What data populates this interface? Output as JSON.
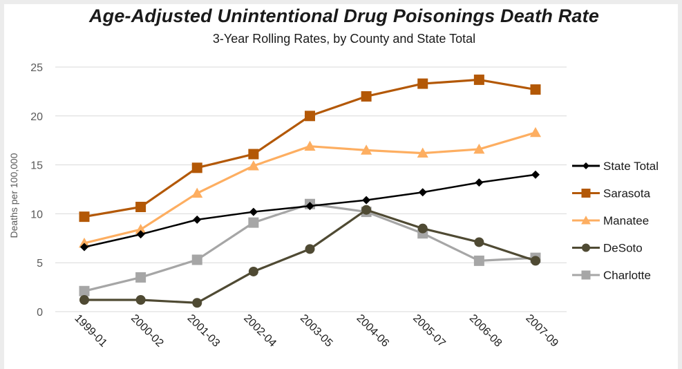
{
  "chart_data": {
    "type": "line",
    "title": "Age-Adjusted Unintentional Drug Poisonings Death Rate",
    "subtitle": "3-Year Rolling Rates, by County and State Total",
    "ylabel": "Deaths per 100,000",
    "xlabel": "",
    "ylim": [
      0,
      25
    ],
    "yticks": [
      0,
      5,
      10,
      15,
      20,
      25
    ],
    "grid": true,
    "legend_position": "right",
    "categories": [
      "1999-01",
      "2000-02",
      "2001-03",
      "2002-04",
      "2003-05",
      "2004-06",
      "2005-07",
      "2006-08",
      "2007-09"
    ],
    "series": [
      {
        "name": "State Total",
        "color": "#000000",
        "marker": "diamond",
        "values": [
          6.6,
          7.9,
          9.4,
          10.2,
          10.8,
          11.4,
          12.2,
          13.2,
          14.0
        ]
      },
      {
        "name": "Sarasota",
        "color": "#b35806",
        "marker": "square",
        "values": [
          9.7,
          10.7,
          14.7,
          16.1,
          20.0,
          22.0,
          23.3,
          23.7,
          22.7
        ]
      },
      {
        "name": "Manatee",
        "color": "#fdae61",
        "marker": "triangle",
        "values": [
          7.0,
          8.4,
          12.1,
          14.9,
          16.9,
          16.5,
          16.2,
          16.6,
          18.3
        ]
      },
      {
        "name": "DeSoto",
        "color": "#4f4a33",
        "marker": "circle",
        "values": [
          1.2,
          1.2,
          0.9,
          4.1,
          6.4,
          10.4,
          8.5,
          7.1,
          5.2
        ]
      },
      {
        "name": "Charlotte",
        "color": "#a6a6a6",
        "marker": "square",
        "values": [
          2.1,
          3.5,
          5.3,
          9.1,
          11.0,
          10.2,
          8.0,
          5.2,
          5.5
        ]
      }
    ]
  }
}
